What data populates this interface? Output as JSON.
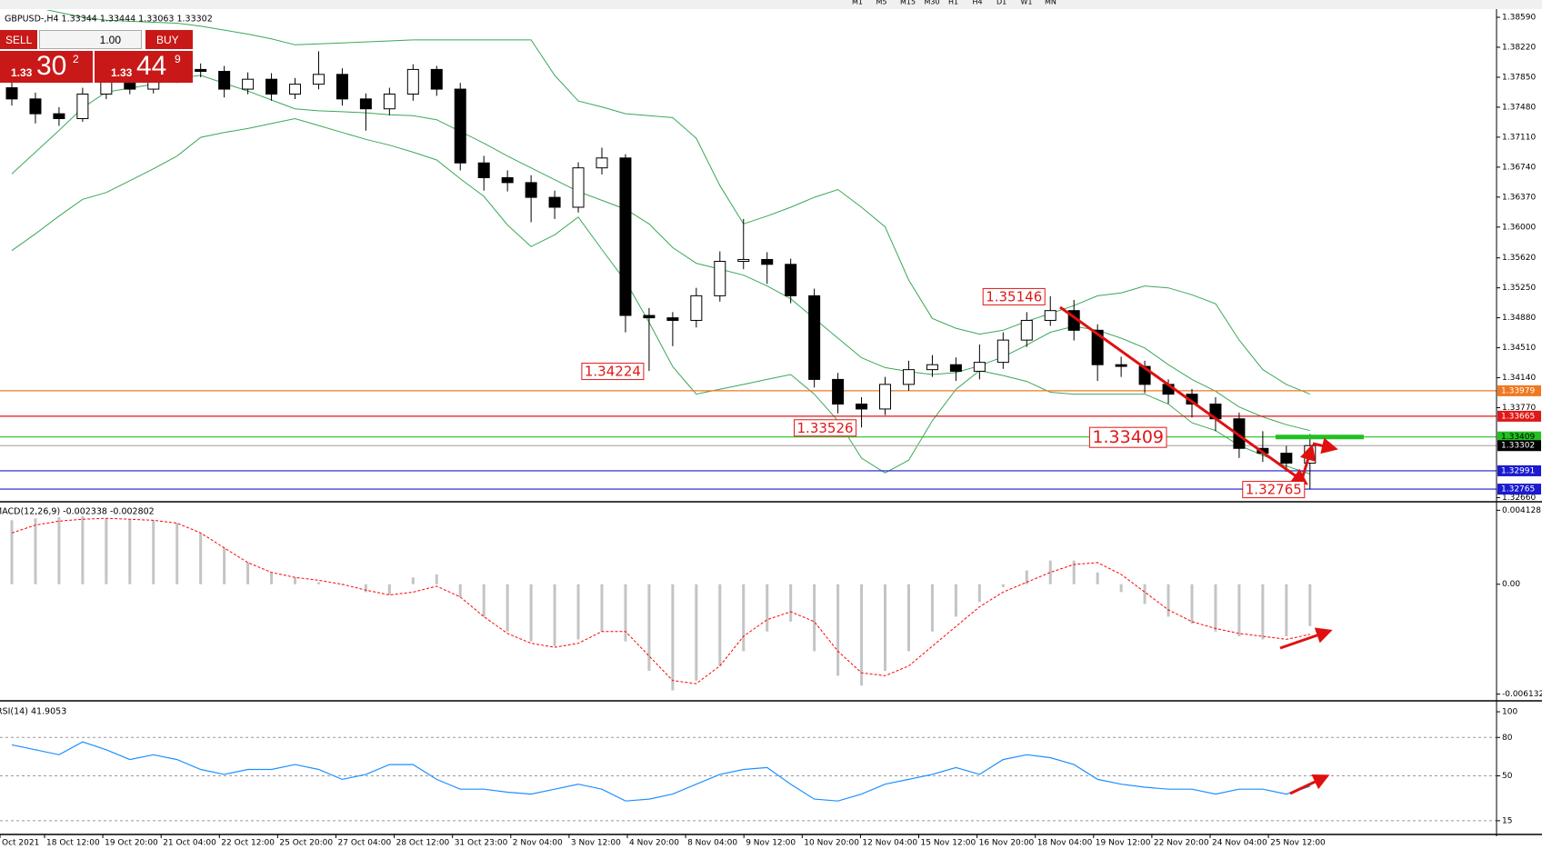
{
  "toolbar": {
    "timeframes": [
      "M1",
      "M5",
      "M15",
      "M30",
      "H1",
      "H4",
      "D1",
      "W1",
      "MN"
    ]
  },
  "trade_panel": {
    "sell": "SELL",
    "lot": "1.00",
    "buy": "BUY",
    "sell_price": {
      "big_figure": "1.33",
      "pips": "30",
      "fraction": "2"
    },
    "buy_price": {
      "big_figure": "1.33",
      "pips": "44",
      "fraction": "9"
    }
  },
  "chart_data": [
    {
      "type": "candlestick",
      "title": "GBPUSD-,H4  1.33344 1.33444 1.33063 1.33302",
      "open": [
        1.3772,
        1.37582,
        1.37399,
        1.37339,
        1.37642,
        1.37825,
        1.37703,
        1.37825,
        1.37946,
        1.37922,
        1.37703,
        1.37825,
        1.37642,
        1.37764,
        1.37885,
        1.37582,
        1.3746,
        1.37642,
        1.37946,
        1.37703,
        1.36792,
        1.3661,
        1.36549,
        1.36367,
        1.36245,
        1.36731,
        1.36853,
        1.34909,
        1.3488,
        1.34848,
        1.35152,
        1.35577,
        1.356,
        1.3554,
        1.35152,
        1.34119,
        1.33815,
        1.33754,
        1.34058,
        1.3424,
        1.34301,
        1.3422,
        1.3433,
        1.34605,
        1.34848,
        1.34969,
        1.34726,
        1.34301,
        1.3428,
        1.34058,
        1.33937,
        1.33815,
        1.33633,
        1.33268,
        1.33208,
        1.33086
      ],
      "high": [
        1.3781,
        1.3766,
        1.3748,
        1.3772,
        1.379,
        1.3789,
        1.379,
        1.381,
        1.3802,
        1.3799,
        1.3791,
        1.379,
        1.3784,
        1.3817,
        1.3796,
        1.3765,
        1.3772,
        1.3801,
        1.3799,
        1.3778,
        1.3688,
        1.367,
        1.3664,
        1.3645,
        1.368,
        1.3698,
        1.369,
        1.35,
        1.3495,
        1.3525,
        1.357,
        1.361,
        1.3569,
        1.3561,
        1.3524,
        1.342,
        1.339,
        1.3415,
        1.3435,
        1.3442,
        1.3439,
        1.3455,
        1.347,
        1.3495,
        1.35146,
        1.351,
        1.348,
        1.344,
        1.3435,
        1.3412,
        1.34,
        1.339,
        1.3371,
        1.3348,
        1.333,
        1.33444
      ],
      "low": [
        1.375,
        1.3728,
        1.3725,
        1.373,
        1.3758,
        1.3764,
        1.3765,
        1.3778,
        1.3785,
        1.376,
        1.3764,
        1.3756,
        1.3758,
        1.377,
        1.375,
        1.3719,
        1.3738,
        1.3756,
        1.3762,
        1.367,
        1.3645,
        1.3644,
        1.3606,
        1.361,
        1.3618,
        1.3665,
        1.347,
        1.34224,
        1.3453,
        1.3476,
        1.3508,
        1.3548,
        1.353,
        1.3506,
        1.3402,
        1.337,
        1.33526,
        1.3368,
        1.3398,
        1.3415,
        1.341,
        1.3412,
        1.3425,
        1.3452,
        1.3478,
        1.346,
        1.341,
        1.3415,
        1.3395,
        1.3382,
        1.3365,
        1.3348,
        1.3315,
        1.331,
        1.3298,
        1.32765
      ],
      "close": [
        1.37582,
        1.37399,
        1.37339,
        1.37642,
        1.37825,
        1.37703,
        1.37825,
        1.37946,
        1.37922,
        1.37703,
        1.37825,
        1.37642,
        1.37764,
        1.37885,
        1.37582,
        1.3746,
        1.37642,
        1.37946,
        1.37703,
        1.36792,
        1.3661,
        1.36549,
        1.36367,
        1.36245,
        1.36731,
        1.36853,
        1.34909,
        1.3488,
        1.34848,
        1.35152,
        1.35577,
        1.356,
        1.3554,
        1.35152,
        1.34119,
        1.33815,
        1.33754,
        1.34058,
        1.3424,
        1.34301,
        1.3422,
        1.3433,
        1.34605,
        1.34848,
        1.34969,
        1.34726,
        1.34301,
        1.3428,
        1.34058,
        1.33937,
        1.33815,
        1.33633,
        1.33268,
        1.33208,
        1.33086,
        1.33302
      ],
      "up_color": "#ffffff",
      "down_color": "#000000",
      "bollinger": {
        "color": "#3aa858",
        "upper": [
          1.38772,
          1.38712,
          1.38651,
          1.3859,
          1.38554,
          1.38541,
          1.38529,
          1.38517,
          1.38481,
          1.38432,
          1.38383,
          1.38323,
          1.3825,
          1.38262,
          1.38274,
          1.38286,
          1.38298,
          1.38311,
          1.38311,
          1.38311,
          1.38311,
          1.38311,
          1.38311,
          1.37873,
          1.37557,
          1.37484,
          1.37399,
          1.37375,
          1.37351,
          1.37096,
          1.36512,
          1.36039,
          1.36136,
          1.36245,
          1.36367,
          1.36464,
          1.36245,
          1.36002,
          1.35346,
          1.34872,
          1.34751,
          1.34678,
          1.34726,
          1.34836,
          1.34933,
          1.3503,
          1.35152,
          1.35188,
          1.35273,
          1.35249,
          1.35164,
          1.35054,
          1.34605,
          1.3424,
          1.34058,
          1.33937
        ],
        "middle": [
          1.36658,
          1.36925,
          1.37193,
          1.37472,
          1.37667,
          1.37715,
          1.37764,
          1.37837,
          1.37873,
          1.37776,
          1.37679,
          1.37569,
          1.3746,
          1.37436,
          1.37424,
          1.37411,
          1.37387,
          1.37375,
          1.37326,
          1.37181,
          1.37035,
          1.36877,
          1.36731,
          1.36585,
          1.36439,
          1.3633,
          1.36221,
          1.36039,
          1.35747,
          1.35553,
          1.3548,
          1.35407,
          1.35273,
          1.35115,
          1.34872,
          1.34629,
          1.34386,
          1.34265,
          1.34216,
          1.3418,
          1.34204,
          1.34289,
          1.34398,
          1.34544,
          1.34702,
          1.34775,
          1.34726,
          1.34629,
          1.34508,
          1.34301,
          1.34119,
          1.33973,
          1.33779,
          1.33657,
          1.3356,
          1.33487
        ],
        "lower": [
          1.3571,
          1.35917,
          1.36136,
          1.36342,
          1.36427,
          1.36573,
          1.36719,
          1.36877,
          1.37108,
          1.37168,
          1.37217,
          1.37278,
          1.37339,
          1.37254,
          1.37168,
          1.37083,
          1.37011,
          1.36925,
          1.36828,
          1.36597,
          1.36379,
          1.36026,
          1.35759,
          1.35905,
          1.36124,
          1.35723,
          1.35334,
          1.34824,
          1.34277,
          1.33937,
          1.33997,
          1.34058,
          1.34119,
          1.3418,
          1.33937,
          1.33609,
          1.33147,
          1.32965,
          1.33123,
          1.33609,
          1.33997,
          1.34228,
          1.34167,
          1.34095,
          1.33961,
          1.33937,
          1.33937,
          1.33937,
          1.33937,
          1.33815,
          1.33584,
          1.33487,
          1.33305,
          1.33183,
          1.3305,
          1.32952
        ]
      },
      "levels": [
        {
          "value": 1.33979,
          "color": "#f07820",
          "label_color": "#ffffff"
        },
        {
          "value": 1.33665,
          "color": "#e01818",
          "label_color": "#ffffff"
        },
        {
          "value": 1.33409,
          "color": "#22c022",
          "label_color": "#000000"
        },
        {
          "value": 1.33302,
          "color": "#b0b0b0",
          "label_color": "#ffffff",
          "label_fill": "#000000"
        },
        {
          "value": 1.32991,
          "color": "#1a1ad0",
          "label_color": "#ffffff"
        },
        {
          "value": 1.32765,
          "color": "#1a1ad0",
          "label_color": "#ffffff"
        }
      ],
      "annotations": [
        1.35146,
        1.34224,
        1.33526,
        1.33409,
        1.32765
      ],
      "annotation_color": "#e01818",
      "ylim": [
        1.3262,
        1.3868
      ],
      "yticks": [
        {
          "value": 1.3859,
          "label": "1.38590"
        },
        {
          "value": 1.3822,
          "label": "1.38220"
        },
        {
          "value": 1.3785,
          "label": "1.37850"
        },
        {
          "value": 1.3748,
          "label": "1.37480"
        },
        {
          "value": 1.3711,
          "label": "1.37110"
        },
        {
          "value": 1.3674,
          "label": "1.36740"
        },
        {
          "value": 1.3637,
          "label": "1.36370"
        },
        {
          "value": 1.36,
          "label": "1.36000"
        },
        {
          "value": 1.3562,
          "label": "1.35620"
        },
        {
          "value": 1.3525,
          "label": "1.35250"
        },
        {
          "value": 1.3488,
          "label": "1.34880"
        },
        {
          "value": 1.3451,
          "label": "1.34510"
        },
        {
          "value": 1.3414,
          "label": "1.34140"
        },
        {
          "value": 1.3377,
          "label": "1.33770"
        },
        {
          "value": 1.3266,
          "label": "1.32660"
        }
      ]
    },
    {
      "type": "macd",
      "title": "MACD(12,26,9) -0.002338 -0.002802",
      "histogram": {
        "color": "#c4c4c4",
        "values": [
          0.00357,
          0.00368,
          0.00374,
          0.00379,
          0.00368,
          0.00363,
          0.00357,
          0.00341,
          0.00286,
          0.00203,
          0.00121,
          0.00066,
          0.00038,
          0.00011,
          -5e-05,
          -0.00044,
          -0.0006,
          0.00038,
          0.00055,
          -0.00071,
          -0.00181,
          -0.00264,
          -0.00319,
          -0.00346,
          -0.00308,
          -0.00264,
          -0.00319,
          -0.00484,
          -0.00593,
          -0.00538,
          -0.00456,
          -0.00374,
          -0.00264,
          -0.00209,
          -0.00374,
          -0.00511,
          -0.00566,
          -0.00484,
          -0.00374,
          -0.00264,
          -0.00181,
          -0.00099,
          -0.00016,
          0.00077,
          0.00132,
          0.00132,
          0.00066,
          -0.00044,
          -0.0011,
          -0.00181,
          -0.0022,
          -0.00264,
          -0.00291,
          -0.00308,
          -0.00291,
          -0.002338
        ]
      },
      "signal": {
        "color": "#ff0000",
        "values": [
          0.00286,
          0.0033,
          0.00352,
          0.00363,
          0.00368,
          0.00363,
          0.00357,
          0.00341,
          0.00286,
          0.00203,
          0.00121,
          0.00066,
          0.00038,
          0.00022,
          0,
          -0.00033,
          -0.0006,
          -0.00044,
          -0.00011,
          -0.00071,
          -0.00181,
          -0.00275,
          -0.0033,
          -0.00352,
          -0.0033,
          -0.00264,
          -0.00264,
          -0.00401,
          -0.00538,
          -0.00555,
          -0.00456,
          -0.00291,
          -0.00198,
          -0.00154,
          -0.00209,
          -0.00374,
          -0.00495,
          -0.00511,
          -0.00456,
          -0.00346,
          -0.00236,
          -0.00126,
          -0.00044,
          0.00011,
          0.00066,
          0.0011,
          0.00121,
          0.00055,
          -0.00044,
          -0.00143,
          -0.00209,
          -0.00247,
          -0.00275,
          -0.00291,
          -0.00308,
          -0.002802
        ]
      },
      "ylim": [
        -0.00646,
        0.0044
      ],
      "yticks": [
        0.004128,
        {
          "value": 0,
          "label": "0.00"
        },
        -0.006132
      ]
    },
    {
      "type": "line",
      "title": "RSI(14) 41.9053",
      "color": "#1e90ff",
      "values": [
        74.2,
        70.4,
        66.5,
        76.5,
        70.4,
        62.7,
        66.5,
        62.7,
        55.0,
        51.2,
        55.0,
        55.0,
        58.8,
        55.0,
        47.3,
        51.2,
        58.8,
        58.8,
        47.3,
        39.6,
        39.6,
        37.3,
        35.8,
        39.6,
        43.5,
        39.6,
        30.4,
        31.9,
        35.8,
        43.5,
        51.2,
        55.0,
        56.5,
        43.5,
        31.9,
        30.4,
        35.8,
        43.5,
        47.3,
        51.2,
        56.5,
        51.2,
        62.7,
        66.5,
        64.2,
        58.8,
        47.3,
        43.5,
        41.2,
        39.6,
        39.6,
        35.8,
        39.6,
        39.6,
        35.8,
        41.9053
      ],
      "ylim": [
        5,
        105
      ],
      "yticks": [
        100,
        80,
        50,
        15
      ],
      "grid": true,
      "x_tick_labels": [
        "Oct 2021",
        "18 Oct 12:00",
        "19 Oct 20:00",
        "21 Oct 04:00",
        "22 Oct 12:00",
        "25 Oct 20:00",
        "27 Oct 04:00",
        "28 Oct 12:00",
        "31 Oct 23:00",
        "2 Nov 04:00",
        "3 Nov 12:00",
        "4 Nov 20:00",
        "8 Nov 04:00",
        "9 Nov 12:00",
        "10 Nov 20:00",
        "12 Nov 04:00",
        "15 Nov 12:00",
        "16 Nov 20:00",
        "18 Nov 04:00",
        "19 Nov 12:00",
        "22 Nov 20:00",
        "24 Nov 04:00",
        "25 Nov 12:00"
      ]
    }
  ]
}
